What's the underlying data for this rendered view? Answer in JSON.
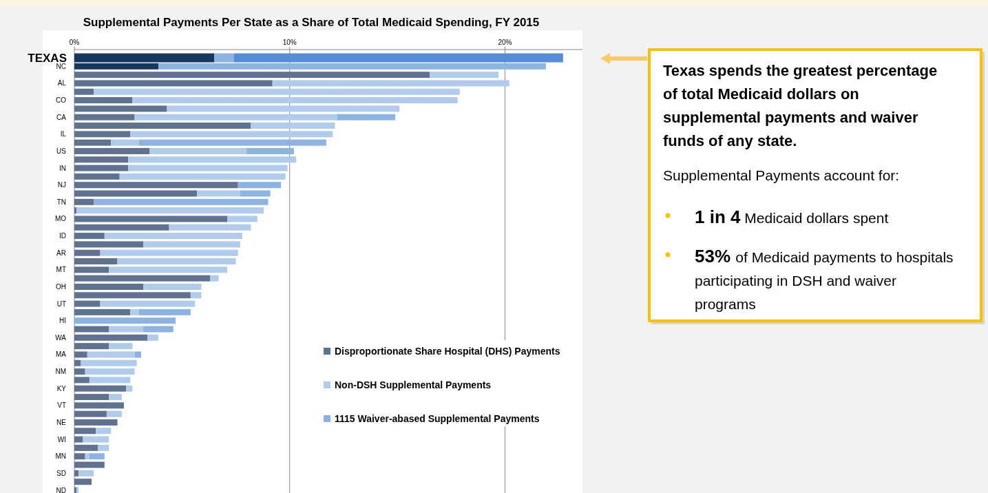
{
  "chart_data": {
    "type": "bar",
    "orientation": "horizontal",
    "stacked": true,
    "title": "Supplemental Payments Per State as a Share of Total Medicaid Spending, FY 2015",
    "categories": [
      "TEXAS",
      "NC",
      null,
      "AL",
      null,
      "CO",
      null,
      "CA",
      null,
      "IL",
      null,
      "US",
      null,
      "IN",
      null,
      "NJ",
      null,
      "TN",
      null,
      "MO",
      null,
      "ID",
      null,
      "AR",
      null,
      "MT",
      null,
      "OH",
      null,
      "UT",
      null,
      "HI",
      null,
      "WA",
      null,
      "MA",
      null,
      "NM",
      null,
      "KY",
      null,
      "VT",
      null,
      "NE",
      null,
      "WI",
      null,
      "MN",
      null,
      "SD",
      null,
      "ND"
    ],
    "series": [
      {
        "name": "Disproportionate Share Hospital (DHS) Payments",
        "color": "#5f7391",
        "colors": [
          "#17375e",
          "#17375e",
          "#5f7391",
          "#5f7391",
          "#5f7391",
          "#5f7391",
          "#5f7391",
          "#5f7391",
          "#5f7391",
          "#5f7391",
          "#5f7391",
          "#5f7391",
          "#5f7391",
          "#5f7391",
          "#5f7391",
          "#5f7391",
          "#5f7391",
          "#5f7391",
          "#5f7391",
          "#5f7391",
          "#5f7391",
          "#5f7391",
          "#5f7391",
          "#5f7391",
          "#5f7391",
          "#5f7391",
          "#5f7391",
          "#5f7391",
          "#5f7391",
          "#5f7391",
          "#5f7391",
          null,
          "#5f7391",
          "#5f7391",
          "#5f7391",
          "#5f7391",
          "#5f7391",
          "#5f7391",
          "#5f7391",
          "#5f7391",
          "#5f7391",
          "#5f7391",
          "#5f7391",
          "#5f7391",
          "#5f7391",
          "#5f7391",
          "#5f7391",
          "#5f7391",
          "#5f7391",
          "#5f7391",
          "#5f7391",
          "#5f7391"
        ],
        "values": [
          6.5,
          3.9,
          16.5,
          9.2,
          0.9,
          2.7,
          4.3,
          2.8,
          8.2,
          2.6,
          1.7,
          3.5,
          2.5,
          2.5,
          2.1,
          7.6,
          5.7,
          0.9,
          0.1,
          7.1,
          4.4,
          1.4,
          3.2,
          1.2,
          2.0,
          1.6,
          6.3,
          3.2,
          5.4,
          1.2,
          2.6,
          null,
          1.6,
          3.4,
          1.6,
          0.6,
          0.3,
          0.5,
          0.7,
          2.4,
          1.6,
          2.3,
          1.5,
          2.0,
          1.0,
          0.4,
          1.1,
          0.5,
          1.4,
          0.2,
          0.8,
          0.1
        ]
      },
      {
        "name": "Non-DSH Supplemental Payments",
        "color": "#b0cbec",
        "colors": [
          "#8db3e2",
          null,
          "#b0cbec",
          "#b0cbec",
          "#b0cbec",
          "#b0cbec",
          "#b0cbec",
          "#b0cbec",
          "#b0cbec",
          "#b0cbec",
          "#b0cbec",
          "#b0cbec",
          "#b0cbec",
          "#b0cbec",
          "#b0cbec",
          null,
          "#b0cbec",
          null,
          "#b0cbec",
          "#b0cbec",
          "#b0cbec",
          "#b0cbec",
          "#b0cbec",
          "#b0cbec",
          "#b0cbec",
          "#b0cbec",
          "#b0cbec",
          "#b0cbec",
          "#b0cbec",
          "#b0cbec",
          "#b0cbec",
          null,
          "#b0cbec",
          "#b0cbec",
          "#b0cbec",
          "#b0cbec",
          "#b0cbec",
          "#b0cbec",
          "#b0cbec",
          "#b0cbec",
          "#b0cbec",
          null,
          "#b0cbec",
          null,
          "#b0cbec",
          "#b0cbec",
          "#b0cbec",
          "#b0cbec",
          null,
          "#b0cbec",
          null,
          "#b0cbec"
        ],
        "values": [
          0.9,
          null,
          3.2,
          11.0,
          17.0,
          15.1,
          10.8,
          9.4,
          3.9,
          9.4,
          1.3,
          4.5,
          7.8,
          7.4,
          7.7,
          null,
          2.0,
          null,
          8.7,
          1.4,
          3.8,
          6.4,
          4.5,
          6.4,
          5.5,
          5.5,
          0.4,
          2.7,
          0.5,
          4.4,
          0.4,
          null,
          1.6,
          0.5,
          1.1,
          2.2,
          2.6,
          2.3,
          1.9,
          0.3,
          0.6,
          null,
          0.7,
          null,
          0.7,
          1.2,
          0.5,
          0.2,
          null,
          0.7,
          null,
          0.1
        ]
      },
      {
        "name": "1115 Waiver-abased Supplemental Payments",
        "color": "#8db3e2",
        "colors": [
          "#558ed5",
          "#8db3e2",
          null,
          null,
          null,
          null,
          null,
          "#8db3e2",
          null,
          null,
          "#8db3e2",
          "#8db3e2",
          null,
          null,
          null,
          "#8db3e2",
          "#8db3e2",
          "#8db3e2",
          null,
          null,
          null,
          null,
          null,
          null,
          null,
          null,
          null,
          null,
          null,
          null,
          "#8db3e2",
          "#8db3e2",
          "#8db3e2",
          null,
          null,
          "#8db3e2",
          null,
          null,
          null,
          null,
          null,
          null,
          null,
          null,
          null,
          null,
          null,
          "#8db3e2",
          null,
          null,
          null,
          null
        ],
        "values": [
          15.3,
          18.0,
          null,
          null,
          null,
          null,
          null,
          2.7,
          null,
          null,
          8.7,
          2.2,
          null,
          null,
          null,
          2.0,
          1.4,
          8.1,
          null,
          null,
          null,
          null,
          null,
          null,
          null,
          null,
          null,
          null,
          null,
          null,
          2.4,
          4.7,
          1.4,
          null,
          null,
          0.3,
          null,
          null,
          null,
          null,
          null,
          null,
          null,
          null,
          null,
          null,
          null,
          0.7,
          null,
          null,
          null,
          null
        ]
      }
    ],
    "xlim": [
      0,
      23.6
    ],
    "xticks": [
      {
        "value": 0,
        "label": "0%"
      },
      {
        "value": 10,
        "label": "10%"
      },
      {
        "value": 20,
        "label": "20%"
      }
    ],
    "grid": "x",
    "legend": "bottom right",
    "annotations": [
      "Texas spends the greatest percentage of total Medicaid dollars on supplemental payments and waiver funds of any state.",
      "Supplemental Payments account for:",
      "1 in 4",
      "Medicaid dollars spent",
      "53%",
      "of Medicaid payments to hospitals participating in DSH and waiver programs"
    ]
  }
}
